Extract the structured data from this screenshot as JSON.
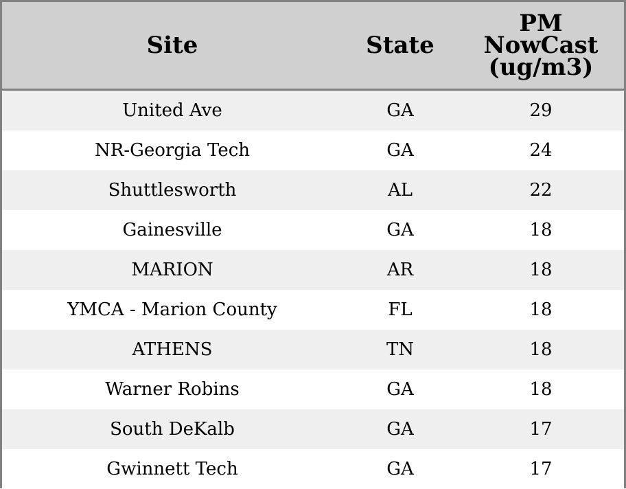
{
  "chart_data": {
    "type": "table",
    "columns": [
      "Site",
      "State",
      "PM NowCast (ug/m3)"
    ],
    "header_lines": {
      "pm": [
        "PM",
        "NowCast",
        "(ug/m3)"
      ]
    },
    "rows": [
      [
        "United Ave",
        "GA",
        29
      ],
      [
        "NR-Georgia Tech",
        "GA",
        24
      ],
      [
        "Shuttlesworth",
        "AL",
        22
      ],
      [
        "Gainesville",
        "GA",
        18
      ],
      [
        "MARION",
        "AR",
        18
      ],
      [
        "YMCA - Marion County",
        "FL",
        18
      ],
      [
        "ATHENS",
        "TN",
        18
      ],
      [
        "Warner Robins",
        "GA",
        18
      ],
      [
        "South DeKalb",
        "GA",
        17
      ],
      [
        "Gwinnett Tech",
        "GA",
        17
      ]
    ]
  },
  "colors": {
    "header_bg": "#d0d0d0",
    "stripe_bg": "#efefef",
    "border": "#808080"
  }
}
